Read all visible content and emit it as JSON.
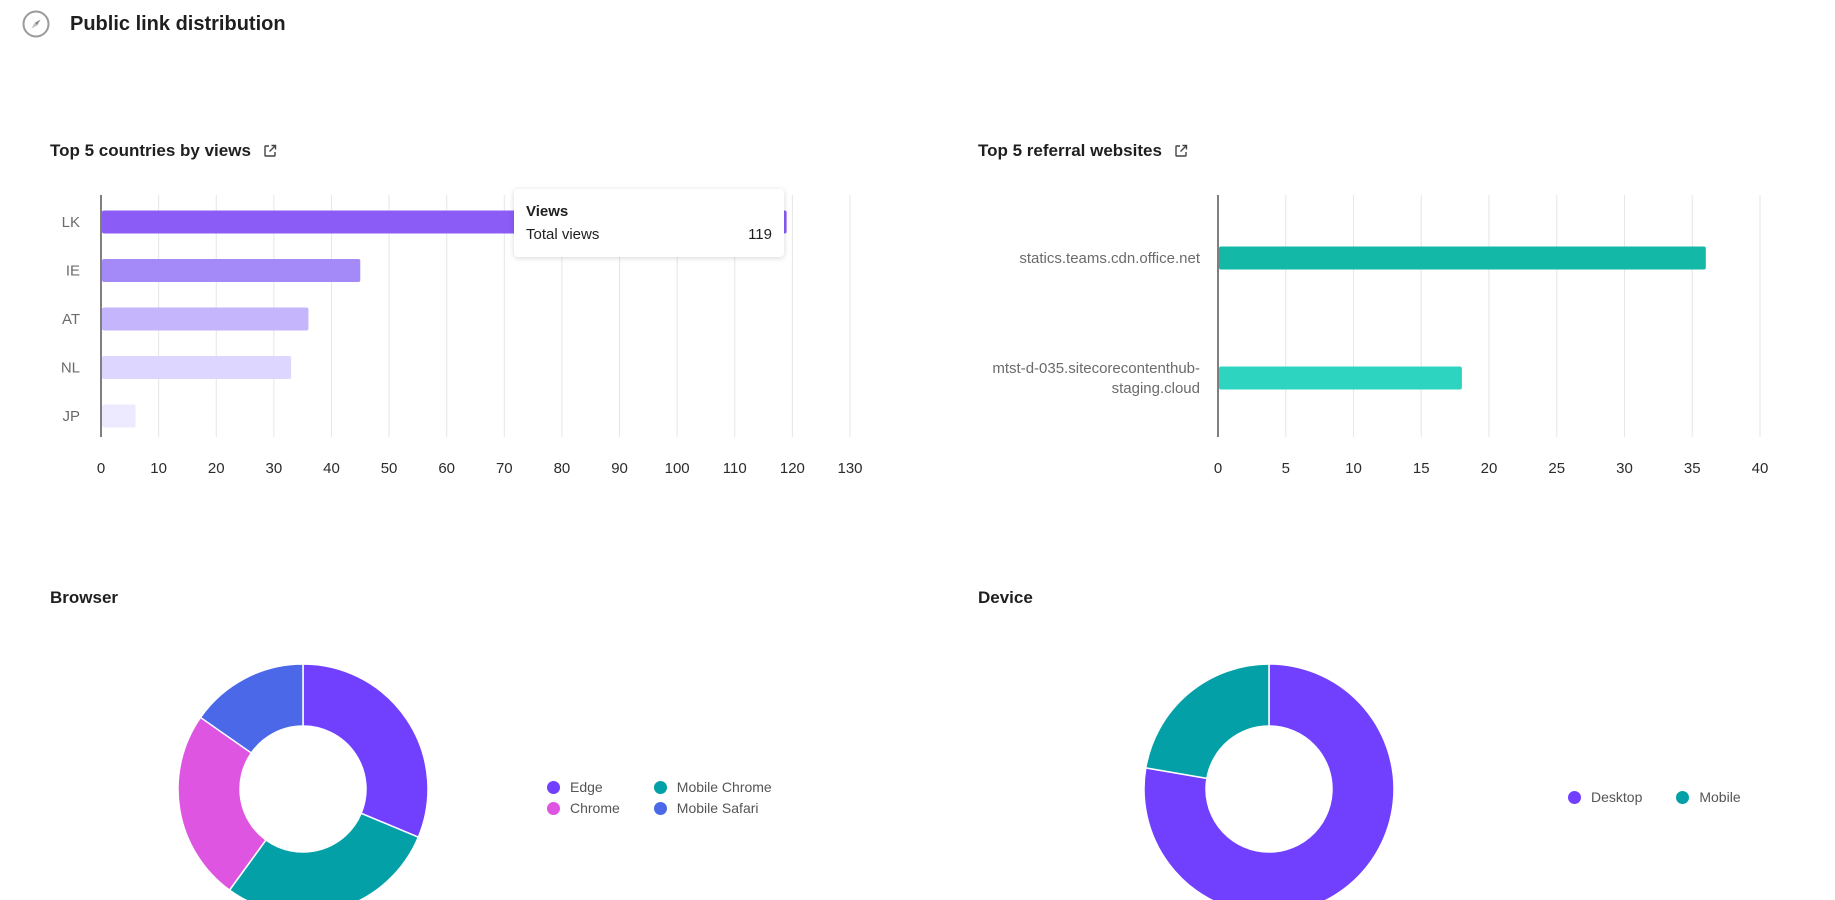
{
  "page": {
    "title": "Public link distribution",
    "icon": "compass-icon"
  },
  "panels": {
    "countries": {
      "title": "Top 5 countries by views",
      "link_icon": "external-link-icon"
    },
    "referrals": {
      "title": "Top 5 referral websites",
      "link_icon": "external-link-icon"
    },
    "browser": {
      "title": "Browser"
    },
    "device": {
      "title": "Device"
    }
  },
  "tooltip": {
    "title": "Views",
    "label": "Total views",
    "value": "119"
  },
  "chart_data": [
    {
      "type": "bar",
      "orientation": "horizontal",
      "title": "Top 5 countries by views",
      "categories": [
        "LK",
        "IE",
        "AT",
        "NL",
        "JP"
      ],
      "values": [
        119,
        45,
        36,
        33,
        6
      ],
      "colors": [
        "#8b5cf6",
        "#a48af9",
        "#c4b5fc",
        "#ddd6fe",
        "#ede9fe"
      ],
      "xlim": [
        0,
        130
      ],
      "xticks": [
        "0",
        "10",
        "20",
        "30",
        "40",
        "50",
        "60",
        "70",
        "80",
        "90",
        "100",
        "110",
        "120",
        "130"
      ],
      "grid": true
    },
    {
      "type": "bar",
      "orientation": "horizontal",
      "title": "Top 5 referral websites",
      "categories": [
        "statics.teams.cdn.office.net",
        "mtst-d-035.sitecorecontenthub-staging.cloud"
      ],
      "category_lines": [
        [
          "statics.teams.cdn.office.net"
        ],
        [
          "mtst-d-035.sitecorecontenthub-",
          "staging.cloud"
        ]
      ],
      "values": [
        36,
        18
      ],
      "colors": [
        "#14b8a6",
        "#2dd4bf"
      ],
      "xlim": [
        0,
        40
      ],
      "xticks": [
        "0",
        "5",
        "10",
        "15",
        "20",
        "25",
        "30",
        "35",
        "40"
      ],
      "grid": true
    },
    {
      "type": "pie",
      "donut": true,
      "title": "Browser",
      "labels": [
        "Edge",
        "Mobile Chrome",
        "Chrome",
        "Mobile Safari"
      ],
      "values": [
        0.313,
        0.287,
        0.247,
        0.153
      ],
      "colors": [
        "#7140ff",
        "#03a0a8",
        "#dd55e0",
        "#4a68e8"
      ],
      "legend_position": "right"
    },
    {
      "type": "pie",
      "donut": true,
      "title": "Device",
      "labels": [
        "Desktop",
        "Mobile"
      ],
      "values": [
        0.777,
        0.223
      ],
      "colors": [
        "#7140ff",
        "#03a0a8"
      ],
      "legend_position": "right"
    }
  ]
}
